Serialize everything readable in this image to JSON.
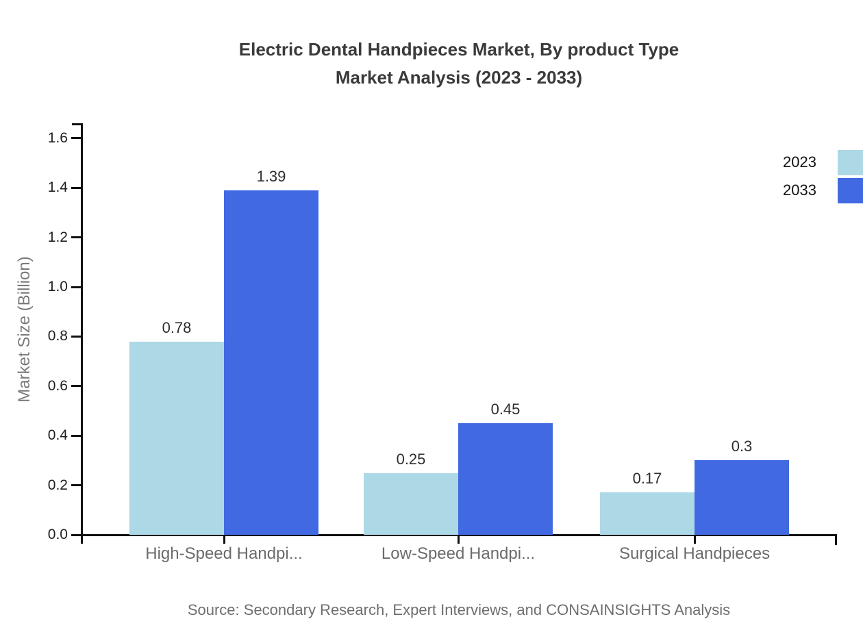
{
  "title": {
    "line1": "Electric Dental Handpieces Market, By product Type",
    "line2": "Market Analysis (2023 - 2033)"
  },
  "y_axis": {
    "label": "Market Size (Billion)"
  },
  "legend": [
    {
      "label": "2023",
      "color": "#ADD8E6"
    },
    {
      "label": "2033",
      "color": "#4169E1"
    }
  ],
  "source": "Source: Secondary Research, Expert Interviews, and CONSAINSIGHTS Analysis",
  "chart_data": {
    "type": "bar",
    "title": "Electric Dental Handpieces Market, By product Type Market Analysis (2023 - 2033)",
    "categories": [
      "High-Speed Handpi...",
      "Low-Speed Handpi...",
      "Surgical Handpieces"
    ],
    "series": [
      {
        "name": "2023",
        "color": "#ADD8E6",
        "values": [
          0.78,
          0.25,
          0.17
        ]
      },
      {
        "name": "2033",
        "color": "#4169E1",
        "values": [
          1.39,
          0.45,
          0.3
        ]
      }
    ],
    "xlabel": "",
    "ylabel": "Market Size (Billion)",
    "ylim": [
      0,
      1.66
    ],
    "ytick_step": 0.2,
    "yticks": [
      "0.0",
      "0.2",
      "0.4",
      "0.6",
      "0.8",
      "1.0",
      "1.2",
      "1.4",
      "1.6"
    ],
    "grid": false,
    "legend_position": "top-right",
    "value_labels": true
  }
}
